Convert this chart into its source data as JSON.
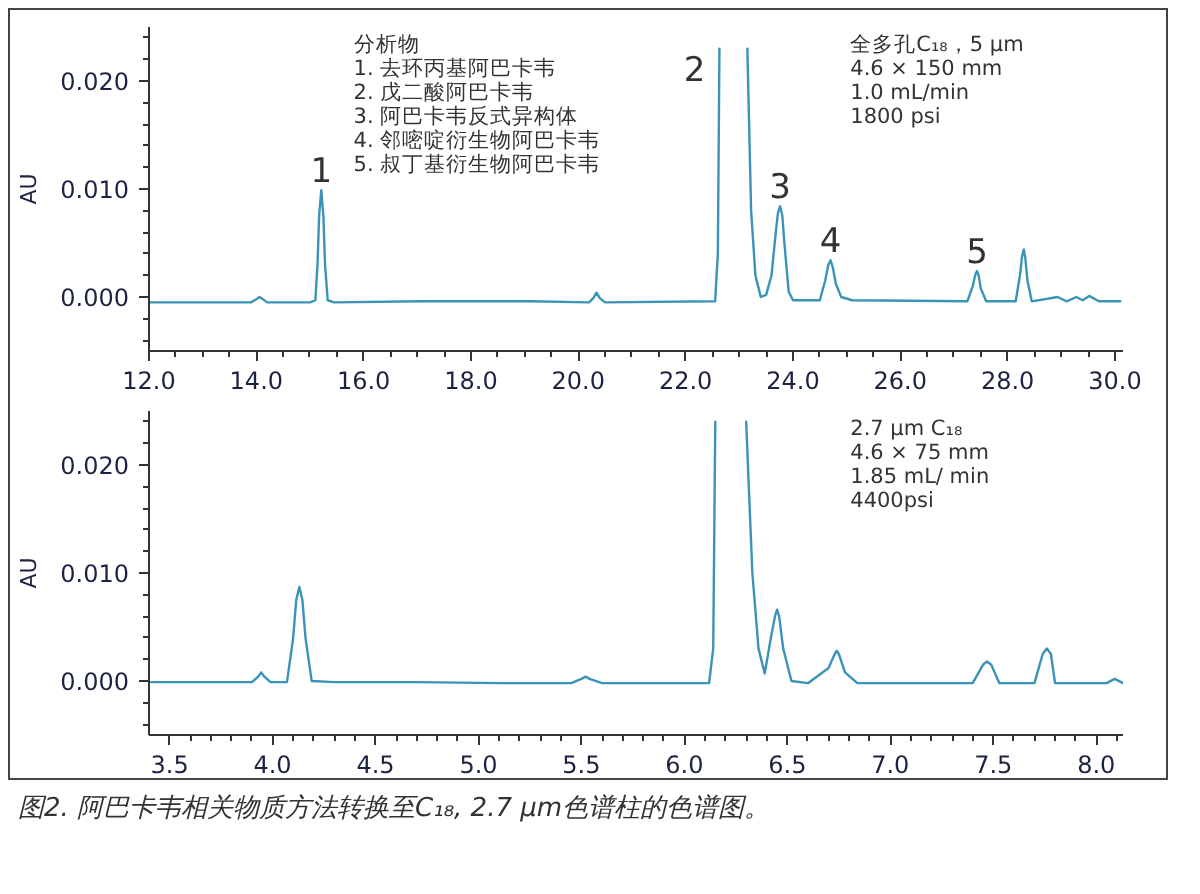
{
  "chart_data": [
    {
      "type": "line",
      "ylabel": "AU",
      "color": "#3b94b8",
      "xlim": [
        12.0,
        30.15
      ],
      "ylim": [
        -0.005,
        0.025
      ],
      "xticks": [
        {
          "value": 12,
          "label": "12.0"
        },
        {
          "value": 12.5,
          "label": null
        },
        {
          "value": 13,
          "label": null
        },
        {
          "value": 13.5,
          "label": null
        },
        {
          "value": 14,
          "label": "14.0"
        },
        {
          "value": 14.5,
          "label": null
        },
        {
          "value": 15,
          "label": null
        },
        {
          "value": 15.5,
          "label": null
        },
        {
          "value": 16,
          "label": "16.0"
        },
        {
          "value": 16.5,
          "label": null
        },
        {
          "value": 17,
          "label": null
        },
        {
          "value": 17.5,
          "label": null
        },
        {
          "value": 18,
          "label": "18.0"
        },
        {
          "value": 18.5,
          "label": null
        },
        {
          "value": 19,
          "label": null
        },
        {
          "value": 19.5,
          "label": null
        },
        {
          "value": 20,
          "label": "20.0"
        },
        {
          "value": 20.5,
          "label": null
        },
        {
          "value": 21,
          "label": null
        },
        {
          "value": 21.5,
          "label": null
        },
        {
          "value": 22,
          "label": "22.0"
        },
        {
          "value": 22.5,
          "label": null
        },
        {
          "value": 23,
          "label": null
        },
        {
          "value": 23.5,
          "label": null
        },
        {
          "value": 24,
          "label": "24.0"
        },
        {
          "value": 24.5,
          "label": null
        },
        {
          "value": 25,
          "label": null
        },
        {
          "value": 25.5,
          "label": null
        },
        {
          "value": 26,
          "label": "26.0"
        },
        {
          "value": 26.5,
          "label": null
        },
        {
          "value": 27,
          "label": null
        },
        {
          "value": 27.5,
          "label": null
        },
        {
          "value": 28,
          "label": "28.0"
        },
        {
          "value": 28.5,
          "label": null
        },
        {
          "value": 29,
          "label": null
        },
        {
          "value": 29.5,
          "label": null
        },
        {
          "value": 30,
          "label": "30.0"
        }
      ],
      "yticks": [
        {
          "value": -0.004,
          "label": null
        },
        {
          "value": -0.002,
          "label": null
        },
        {
          "value": 0,
          "label": "0.000"
        },
        {
          "value": 0.002,
          "label": null
        },
        {
          "value": 0.004,
          "label": null
        },
        {
          "value": 0.006,
          "label": null
        },
        {
          "value": 0.008,
          "label": null
        },
        {
          "value": 0.01,
          "label": "0.010"
        },
        {
          "value": 0.012,
          "label": null
        },
        {
          "value": 0.014,
          "label": null
        },
        {
          "value": 0.016,
          "label": null
        },
        {
          "value": 0.018,
          "label": null
        },
        {
          "value": 0.02,
          "label": "0.020"
        },
        {
          "value": 0.022,
          "label": null
        },
        {
          "value": 0.024,
          "label": null
        }
      ],
      "x": [
        12.0,
        13.0,
        13.9,
        14.0,
        14.06,
        14.12,
        14.2,
        15.0,
        15.1,
        15.14,
        15.17,
        15.21,
        15.25,
        15.28,
        15.33,
        15.45,
        17.1,
        17.6,
        19.1,
        20.2,
        20.28,
        20.34,
        20.4,
        20.5,
        22.55,
        22.6,
        22.63,
        22.9,
        23.15,
        23.22,
        23.3,
        23.4,
        23.5,
        23.6,
        23.68,
        23.72,
        23.76,
        23.8,
        23.84,
        23.92,
        24.0,
        24.5,
        24.6,
        24.66,
        24.7,
        24.74,
        24.8,
        24.9,
        25.1,
        27.25,
        27.35,
        27.4,
        27.43,
        27.46,
        27.5,
        27.6,
        28.15,
        28.23,
        28.27,
        28.3,
        28.33,
        28.37,
        28.45,
        28.93,
        29.1,
        29.28,
        29.4,
        29.52,
        29.7,
        30.1
      ],
      "values": [
        -0.0005,
        -0.0005,
        -0.0005,
        -0.0002,
        0.0,
        -0.0002,
        -0.0005,
        -0.0005,
        -0.0003,
        0.003,
        0.0075,
        0.0099,
        0.0075,
        0.003,
        -0.0003,
        -0.0005,
        -0.0004,
        -0.0004,
        -0.0004,
        -0.0005,
        -0.0001,
        0.0004,
        -0.0001,
        -0.0005,
        -0.0004,
        0.004,
        0.023,
        null,
        0.023,
        0.008,
        0.002,
        0.0,
        0.0002,
        0.002,
        0.006,
        0.0078,
        0.0084,
        0.0076,
        0.005,
        0.0005,
        -0.0003,
        -0.0003,
        0.0015,
        0.003,
        0.0034,
        0.0028,
        0.0012,
        0.0,
        -0.0003,
        -0.0004,
        0.001,
        0.0021,
        0.0024,
        0.002,
        0.0008,
        -0.0004,
        -0.0004,
        0.002,
        0.0038,
        0.0044,
        0.0036,
        0.0015,
        -0.0004,
        0.0,
        -0.0004,
        0.0,
        -0.0003,
        0.0001,
        -0.0004,
        -0.0004
      ],
      "annotations": [
        "分析物\n1. 去环丙基阿巴卡韦\n2. 戊二酸阿巴卡韦\n3. 阿巴卡韦反式异构体\n4. 邻嘧啶衍生物阿巴卡韦\n5. 叔丁基衍生物阿巴卡韦",
        "全多孔C₁₈，5 μm\n4.6 × 150 mm\n1.0 mL/min\n1800 psi",
        {
          "text": "1",
          "x": 15.21,
          "y": 0.0099
        },
        {
          "text": "2",
          "x": 22.63,
          "y": 0.023
        },
        {
          "text": "3",
          "x": 23.76,
          "y": 0.0084
        },
        {
          "text": "4",
          "x": 24.7,
          "y": 0.0034
        },
        {
          "text": "5",
          "x": 27.43,
          "y": 0.0024
        }
      ]
    },
    {
      "type": "line",
      "ylabel": "AU",
      "color": "#3b94b8",
      "xlim": [
        3.4,
        8.13
      ],
      "ylim": [
        -0.005,
        0.025
      ],
      "xticks": [
        {
          "value": 3.5,
          "label": "3.5"
        },
        {
          "value": 3.6,
          "label": null
        },
        {
          "value": 3.7,
          "label": null
        },
        {
          "value": 3.8,
          "label": null
        },
        {
          "value": 3.9,
          "label": null
        },
        {
          "value": 4,
          "label": "4.0"
        },
        {
          "value": 4.1,
          "label": null
        },
        {
          "value": 4.2,
          "label": null
        },
        {
          "value": 4.3,
          "label": null
        },
        {
          "value": 4.4,
          "label": null
        },
        {
          "value": 4.5,
          "label": "4.5"
        },
        {
          "value": 4.6,
          "label": null
        },
        {
          "value": 4.7,
          "label": null
        },
        {
          "value": 4.8,
          "label": null
        },
        {
          "value": 4.9,
          "label": null
        },
        {
          "value": 5,
          "label": "5.0"
        },
        {
          "value": 5.1,
          "label": null
        },
        {
          "value": 5.2,
          "label": null
        },
        {
          "value": 5.3,
          "label": null
        },
        {
          "value": 5.4,
          "label": null
        },
        {
          "value": 5.5,
          "label": "5.5"
        },
        {
          "value": 5.6,
          "label": null
        },
        {
          "value": 5.7,
          "label": null
        },
        {
          "value": 5.8,
          "label": null
        },
        {
          "value": 5.9,
          "label": null
        },
        {
          "value": 6,
          "label": "6.0"
        },
        {
          "value": 6.1,
          "label": null
        },
        {
          "value": 6.2,
          "label": null
        },
        {
          "value": 6.3,
          "label": null
        },
        {
          "value": 6.4,
          "label": null
        },
        {
          "value": 6.5,
          "label": "6.5"
        },
        {
          "value": 6.6,
          "label": null
        },
        {
          "value": 6.7,
          "label": null
        },
        {
          "value": 6.8,
          "label": null
        },
        {
          "value": 6.9,
          "label": null
        },
        {
          "value": 7,
          "label": "7.0"
        },
        {
          "value": 7.1,
          "label": null
        },
        {
          "value": 7.2,
          "label": null
        },
        {
          "value": 7.3,
          "label": null
        },
        {
          "value": 7.4,
          "label": null
        },
        {
          "value": 7.5,
          "label": "7.5"
        },
        {
          "value": 7.6,
          "label": null
        },
        {
          "value": 7.7,
          "label": null
        },
        {
          "value": 7.8,
          "label": null
        },
        {
          "value": 7.9,
          "label": null
        },
        {
          "value": 8,
          "label": "8.0"
        },
        {
          "value": 8.1,
          "label": null
        }
      ],
      "yticks": [
        {
          "value": -0.004,
          "label": null
        },
        {
          "value": -0.002,
          "label": null
        },
        {
          "value": 0,
          "label": "0.000"
        },
        {
          "value": 0.002,
          "label": null
        },
        {
          "value": 0.004,
          "label": null
        },
        {
          "value": 0.006,
          "label": null
        },
        {
          "value": 0.008,
          "label": null
        },
        {
          "value": 0.01,
          "label": "0.010"
        },
        {
          "value": 0.012,
          "label": null
        },
        {
          "value": 0.014,
          "label": null
        },
        {
          "value": 0.016,
          "label": null
        },
        {
          "value": 0.018,
          "label": null
        },
        {
          "value": 0.02,
          "label": "0.020"
        },
        {
          "value": 0.022,
          "label": null
        },
        {
          "value": 0.024,
          "label": null
        }
      ],
      "x": [
        3.41,
        3.8,
        3.9,
        3.93,
        3.945,
        3.96,
        3.99,
        4.07,
        4.1,
        4.115,
        4.13,
        4.145,
        4.16,
        4.19,
        4.3,
        4.7,
        5.1,
        5.45,
        5.5,
        5.52,
        5.54,
        5.6,
        6.12,
        6.14,
        6.15,
        6.22,
        6.3,
        6.33,
        6.36,
        6.39,
        6.42,
        6.44,
        6.45,
        6.46,
        6.48,
        6.52,
        6.6,
        6.7,
        6.73,
        6.74,
        6.75,
        6.78,
        6.84,
        7.4,
        7.45,
        7.47,
        7.49,
        7.53,
        7.7,
        7.74,
        7.76,
        7.78,
        7.8,
        8.05,
        8.09,
        8.13
      ],
      "values": [
        -0.0001,
        -0.0001,
        -0.0001,
        0.0004,
        0.0008,
        0.0004,
        -0.0001,
        -0.0001,
        0.004,
        0.0075,
        0.0087,
        0.0075,
        0.004,
        0.0,
        -0.0001,
        -0.0001,
        -0.0002,
        -0.0002,
        0.0002,
        0.0004,
        0.0002,
        -0.0002,
        -0.0002,
        0.003,
        0.024,
        null,
        0.024,
        0.01,
        0.003,
        0.0007,
        0.004,
        0.006,
        0.0066,
        0.006,
        0.003,
        0.0,
        -0.0002,
        0.0012,
        0.0025,
        0.0028,
        0.0025,
        0.0008,
        -0.0002,
        -0.0002,
        0.0015,
        0.0018,
        0.0015,
        -0.0002,
        -0.0002,
        0.0025,
        0.003,
        0.0025,
        -0.0002,
        -0.0002,
        0.0002,
        -0.0002
      ],
      "annotations": [
        "2.7 μm C₁₈\n4.6 × 75 mm\n1.85 mL/ min\n4400psi",
        "图2. 阿巴卡韦相关物质方法转换至C₁₈, 2.7 μm色谱柱的色谱图。"
      ]
    }
  ]
}
